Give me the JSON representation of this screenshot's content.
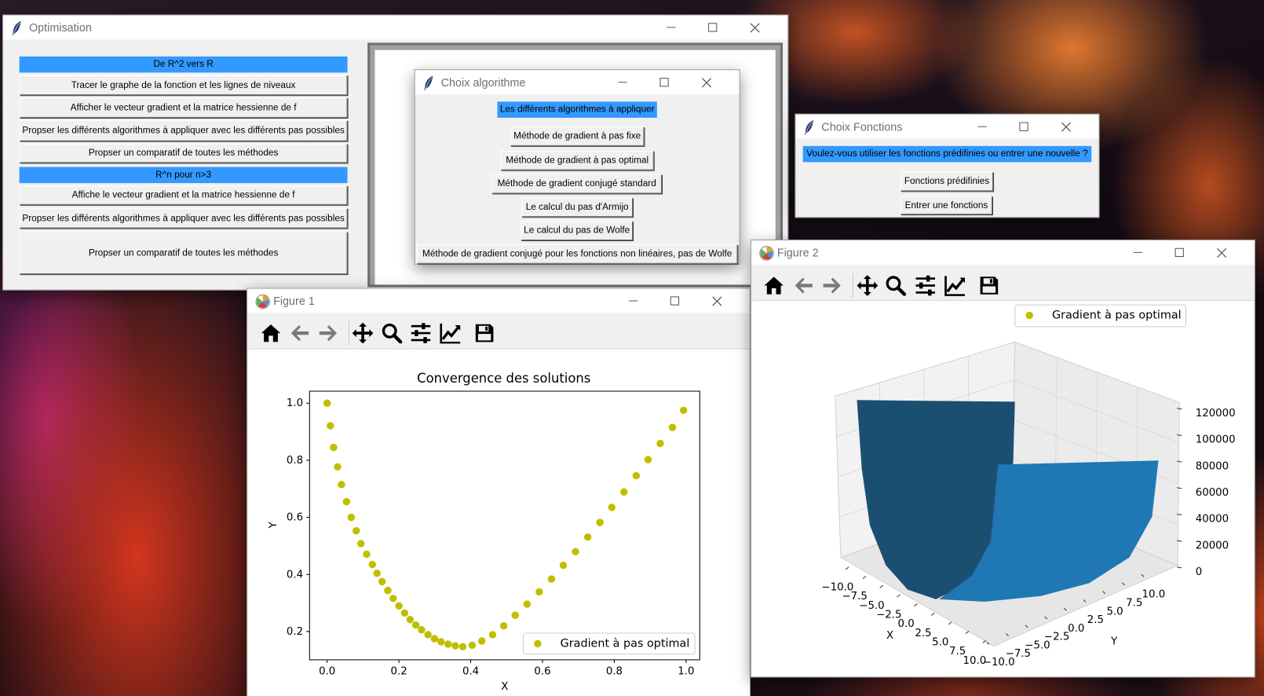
{
  "optimisation": {
    "title": "Optimisation",
    "sections": [
      {
        "header": "De R^2 vers R",
        "buttons": [
          "Tracer le graphe de la fonction et les lignes de niveaux",
          "Afficher le vecteur gradient et la matrice hessienne de f",
          "Propser les différents algorithmes à appliquer avec les différents pas possibles",
          "Propser un comparatif de toutes les méthodes"
        ]
      },
      {
        "header": "R^n pour n>3",
        "buttons": [
          "Affiche le vecteur gradient et la matrice hessienne de f",
          "Propser les différents algorithmes à appliquer avec les différents pas possibles",
          "Propser un comparatif de toutes les méthodes"
        ]
      }
    ]
  },
  "choix_algorithme": {
    "title": "Choix algorithme",
    "header": "Les différents algorithmes à appliquer",
    "buttons": [
      "Méthode de gradient à pas fixe",
      "Méthode de gradient à pas optimal",
      "Méthode de gradient conjugé standard",
      "Le calcul du pas d'Armijo",
      "Le calcul du pas de Wolfe",
      "Méthode de gradient conjugé pour les fonctions non linéaires, pas de Wolfe"
    ]
  },
  "choix_fonctions": {
    "title": "Choix Fonctions",
    "question": "Voulez-vous utiliser les fonctions prédifinies ou entrer une nouvelle ?",
    "buttons": [
      "Fonctions prédifinies",
      "Entrer une fonctions"
    ]
  },
  "figure1": {
    "title": "Figure 1",
    "chart": {
      "type": "scatter",
      "title": "Convergence des solutions",
      "x_label": "X",
      "y_label": "Y",
      "series": [
        {
          "name": "Gradient à pas optimal",
          "color": "#bfbf00",
          "x": [
            0,
            0.009,
            0.018,
            0.029,
            0.04,
            0.054,
            0.067,
            0.081,
            0.094,
            0.11,
            0.126,
            0.139,
            0.153,
            0.169,
            0.184,
            0.2,
            0.216,
            0.231,
            0.247,
            0.263,
            0.281,
            0.299,
            0.317,
            0.337,
            0.357,
            0.378,
            0.404,
            0.431,
            0.461,
            0.492,
            0.524,
            0.557,
            0.591,
            0.625,
            0.658,
            0.692,
            0.726,
            0.76,
            0.793,
            0.827,
            0.861,
            0.894,
            0.928,
            0.962,
            0.993
          ],
          "y": [
            1.0,
            0.921,
            0.845,
            0.777,
            0.715,
            0.655,
            0.6,
            0.553,
            0.508,
            0.471,
            0.435,
            0.404,
            0.375,
            0.344,
            0.316,
            0.29,
            0.265,
            0.242,
            0.223,
            0.206,
            0.189,
            0.175,
            0.164,
            0.156,
            0.15,
            0.147,
            0.152,
            0.167,
            0.189,
            0.22,
            0.257,
            0.296,
            0.339,
            0.384,
            0.432,
            0.48,
            0.531,
            0.582,
            0.635,
            0.689,
            0.746,
            0.802,
            0.859,
            0.915,
            0.975
          ]
        }
      ],
      "xlim": [
        -0.049,
        1.038
      ],
      "ylim": [
        0.101,
        1.042
      ],
      "xticks": [
        {
          "value": 0,
          "label": "0.0"
        },
        {
          "value": 0.2,
          "label": "0.2"
        },
        {
          "value": 0.4,
          "label": "0.4"
        },
        {
          "value": 0.6,
          "label": "0.6"
        },
        {
          "value": 0.8,
          "label": "0.8"
        },
        {
          "value": 1,
          "label": "1.0"
        }
      ],
      "yticks": [
        {
          "value": 0.2,
          "label": "0.2"
        },
        {
          "value": 0.4,
          "label": "0.4"
        },
        {
          "value": 0.6,
          "label": "0.6"
        },
        {
          "value": 0.8,
          "label": "0.8"
        },
        {
          "value": 1,
          "label": "1.0"
        }
      ],
      "legend": "lower right"
    }
  },
  "figure2": {
    "title": "Figure 2",
    "chart": {
      "type": "surface3d",
      "x_label": "X",
      "y_label": "Y",
      "legend_label": "Gradient à pas optimal",
      "legend_color": "#bfbf00",
      "surface_color": "#1f77b4",
      "xlim": [
        -11,
        11
      ],
      "ylim": [
        -11,
        11
      ],
      "zlim": [
        0,
        130000
      ],
      "xticks": [
        {
          "value": -10,
          "label": "−10.0"
        },
        {
          "value": -7.5,
          "label": "−7.5"
        },
        {
          "value": -5,
          "label": "−5.0"
        },
        {
          "value": -2.5,
          "label": "−2.5"
        },
        {
          "value": 0,
          "label": "0.0"
        },
        {
          "value": 2.5,
          "label": "2.5"
        },
        {
          "value": 5,
          "label": "5.0"
        },
        {
          "value": 7.5,
          "label": "7.5"
        },
        {
          "value": 10,
          "label": "10.0"
        }
      ],
      "yticks": [
        {
          "value": -10,
          "label": "−10.0"
        },
        {
          "value": -7.5,
          "label": "−7.5"
        },
        {
          "value": -5,
          "label": "−5.0"
        },
        {
          "value": -2.5,
          "label": "−2.5"
        },
        {
          "value": 0,
          "label": "0.0"
        },
        {
          "value": 2.5,
          "label": "2.5"
        },
        {
          "value": 5,
          "label": "5.0"
        },
        {
          "value": 7.5,
          "label": "7.5"
        },
        {
          "value": 10,
          "label": "10.0"
        }
      ],
      "zticks": [
        0,
        20000,
        40000,
        60000,
        80000,
        100000,
        120000
      ]
    }
  }
}
